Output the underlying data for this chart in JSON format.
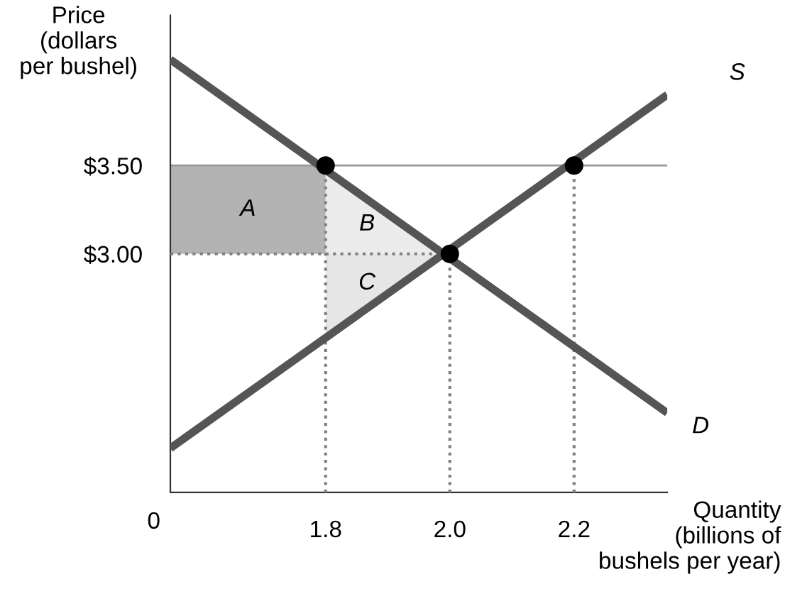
{
  "chart_data": {
    "type": "line",
    "xlabel": "Quantity\n(billions of\nbushels per year)",
    "ylabel": "Price\n(dollars\nper bushel)",
    "xlim": [
      1.55,
      2.35
    ],
    "ylim": [
      1.65,
      4.35
    ],
    "xticks": [
      1.8,
      {
        "value": 2.0,
        "label": "2.0"
      },
      2.2
    ],
    "yticks": [
      {
        "value": 3.0,
        "label": "$3.00"
      },
      {
        "value": 3.5,
        "label": "$3.50"
      }
    ],
    "ref_lines": [
      {
        "axis": "y",
        "value": 3.5,
        "color": "#999999",
        "line_style": "solid"
      }
    ],
    "series": [
      {
        "type": "area",
        "name": "A",
        "color": "#b3b3b3",
        "x": [
          1.55,
          1.8,
          1.8,
          1.55
        ],
        "values": [
          3.0,
          3.0,
          3.5,
          3.5
        ]
      },
      {
        "type": "area",
        "name": "B",
        "color": "#ececec",
        "x": [
          1.8,
          1.8,
          2.0
        ],
        "values": [
          3.5,
          3.0,
          3.0
        ]
      },
      {
        "type": "area",
        "name": "C",
        "color": "#e6e6e6",
        "x": [
          1.8,
          1.8,
          2.0
        ],
        "values": [
          3.0,
          2.5,
          3.0
        ]
      },
      {
        "type": "line",
        "color": "#808080",
        "line_style": "dotted",
        "x": [
          1.55,
          2.0
        ],
        "values": [
          3.0,
          3.0
        ]
      },
      {
        "type": "line",
        "color": "#808080",
        "line_style": "dotted",
        "x": [
          1.8,
          1.8
        ],
        "values": [
          1.65,
          3.5
        ]
      },
      {
        "type": "line",
        "color": "#808080",
        "line_style": "dotted",
        "x": [
          2.0,
          2.0
        ],
        "values": [
          1.65,
          3.0
        ]
      },
      {
        "type": "line",
        "color": "#808080",
        "line_style": "dotted",
        "x": [
          2.2,
          2.2
        ],
        "values": [
          1.65,
          3.5
        ]
      },
      {
        "name": "D",
        "color": "#555555",
        "line_style": "solid",
        "x": [
          1.55,
          2.35
        ],
        "values": [
          4.1,
          2.1
        ]
      },
      {
        "name": "S",
        "color": "#555555",
        "line_style": "solid",
        "x": [
          1.55,
          2.35
        ],
        "values": [
          1.9,
          3.9
        ]
      },
      {
        "type": "scatter",
        "color": "#000000",
        "marker": "circle",
        "x": [
          1.8,
          2.0,
          2.2
        ],
        "values": [
          3.5,
          3.0,
          3.5
        ]
      }
    ],
    "annotations": [
      "0"
    ]
  }
}
